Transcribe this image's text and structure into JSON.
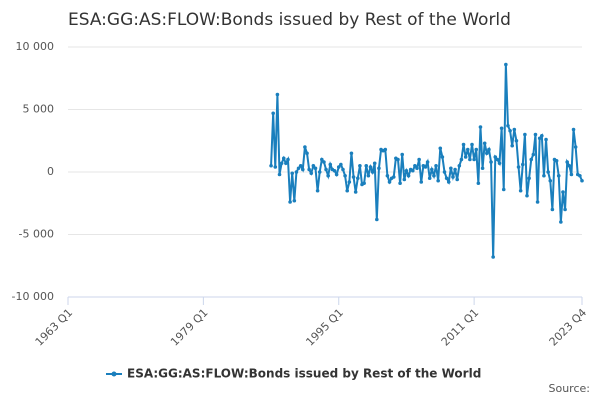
{
  "chart_data": {
    "type": "line",
    "title": "ESA:GG:AS:FLOW:Bonds issued by Rest of the World",
    "source": "Source:",
    "categories": [
      "1963 Q1",
      null,
      null,
      null,
      null,
      null,
      null,
      null,
      null,
      null,
      null,
      null,
      null,
      null,
      null,
      null,
      null,
      null,
      null,
      null,
      null,
      null,
      null,
      null,
      null,
      null,
      null,
      null,
      null,
      null,
      null,
      null,
      null,
      null,
      null,
      null,
      null,
      null,
      null,
      null,
      null,
      null,
      null,
      null,
      null,
      null,
      null,
      null,
      null,
      null,
      null,
      null,
      null,
      null,
      null,
      null,
      null,
      null,
      null,
      null,
      null,
      null,
      null,
      null,
      "1979 Q1",
      null,
      null,
      null,
      null,
      null,
      null,
      null,
      null,
      null,
      null,
      null,
      null,
      null,
      null,
      null,
      null,
      null,
      null,
      null,
      null,
      null,
      null,
      null,
      null,
      null,
      null,
      null,
      null,
      null,
      null,
      null,
      null,
      null,
      null,
      null,
      null,
      null,
      null,
      null,
      null,
      null,
      null,
      null,
      null,
      null,
      null,
      null,
      null,
      null,
      null,
      null,
      null,
      null,
      null,
      null,
      null,
      null,
      null,
      null,
      null,
      null,
      null,
      null,
      "1995 Q1",
      null,
      null,
      null,
      null,
      null,
      null,
      null,
      null,
      null,
      null,
      null,
      null,
      null,
      null,
      null,
      null,
      null,
      null,
      null,
      null,
      null,
      null,
      null,
      null,
      null,
      null,
      null,
      null,
      null,
      null,
      null,
      null,
      null,
      null,
      null,
      null,
      null,
      null,
      null,
      null,
      null,
      null,
      null,
      null,
      null,
      null,
      null,
      null,
      null,
      null,
      null,
      null,
      null,
      null,
      null,
      null,
      null,
      null,
      null,
      null,
      null,
      null,
      null,
      "2011 Q1",
      null,
      null,
      null,
      null,
      null,
      null,
      null,
      null,
      null,
      null,
      null,
      null,
      null,
      null,
      null,
      null,
      null,
      null,
      null,
      null,
      null,
      null,
      null,
      null,
      null,
      null,
      null,
      null,
      null,
      null,
      null,
      null,
      null,
      null,
      null,
      null,
      null,
      null,
      null,
      null,
      null,
      null,
      null,
      null,
      null,
      null,
      null,
      null,
      null,
      null,
      "2023 Q4"
    ],
    "series": [
      {
        "name": "ESA:GG:AS:FLOW:Bonds issued by Rest of the World",
        "color": "#1a7fbd",
        "values": [
          null,
          null,
          null,
          null,
          null,
          null,
          null,
          null,
          null,
          null,
          null,
          null,
          null,
          null,
          null,
          null,
          null,
          null,
          null,
          null,
          null,
          null,
          null,
          null,
          null,
          null,
          null,
          null,
          null,
          null,
          null,
          null,
          null,
          null,
          null,
          null,
          null,
          null,
          null,
          null,
          null,
          null,
          null,
          null,
          null,
          null,
          null,
          null,
          null,
          null,
          null,
          null,
          null,
          null,
          null,
          null,
          null,
          null,
          null,
          null,
          null,
          null,
          null,
          null,
          null,
          null,
          null,
          null,
          null,
          null,
          null,
          null,
          null,
          null,
          null,
          null,
          null,
          null,
          null,
          null,
          null,
          null,
          null,
          null,
          null,
          null,
          null,
          null,
          null,
          null,
          null,
          null,
          null,
          null,
          null,
          null,
          500,
          4700,
          400,
          6200,
          -200,
          700,
          1100,
          700,
          1000,
          -2400,
          -100,
          -2300,
          0,
          300,
          500,
          200,
          2000,
          1500,
          200,
          -100,
          500,
          300,
          -1500,
          0,
          1000,
          800,
          200,
          -300,
          600,
          200,
          100,
          -200,
          400,
          600,
          200,
          -300,
          -1500,
          -800,
          1500,
          -400,
          -1600,
          -500,
          500,
          -1000,
          -900,
          500,
          -300,
          400,
          0,
          700,
          -3800,
          300,
          1800,
          1700,
          1800,
          -300,
          -800,
          -500,
          -400,
          1100,
          1000,
          -900,
          1400,
          -600,
          100,
          -300,
          200,
          100,
          500,
          300,
          1000,
          -800,
          500,
          400,
          800,
          -500,
          200,
          -300,
          500,
          -700,
          1900,
          1200,
          0,
          -500,
          -800,
          300,
          -400,
          200,
          -600,
          500,
          1000,
          2200,
          1200,
          1800,
          1000,
          2200,
          1000,
          1800,
          -900,
          3600,
          300,
          2300,
          1500,
          1800,
          800,
          -6800,
          1200,
          1000,
          700,
          3500,
          -1400,
          8600,
          3700,
          3300,
          2100,
          3400,
          2500,
          400,
          -1500,
          600,
          3000,
          -1900,
          -500,
          1000,
          1400,
          3000,
          -2400,
          2700,
          2900,
          -300,
          2600,
          0,
          -700,
          -3000,
          1000,
          900,
          -300,
          -4000,
          -1600,
          -3000,
          800,
          500,
          -200,
          3400,
          2000,
          -200,
          -300,
          -700
        ]
      }
    ],
    "ylim": [
      -10000,
      10000
    ],
    "yticks": [
      {
        "value": -10000,
        "label": "-10 000"
      },
      {
        "value": -5000,
        "label": "-5 000"
      },
      0,
      {
        "value": 5000,
        "label": "5 000"
      },
      {
        "value": 10000,
        "label": "10 000"
      }
    ],
    "grid": true,
    "legend": "bottom"
  }
}
